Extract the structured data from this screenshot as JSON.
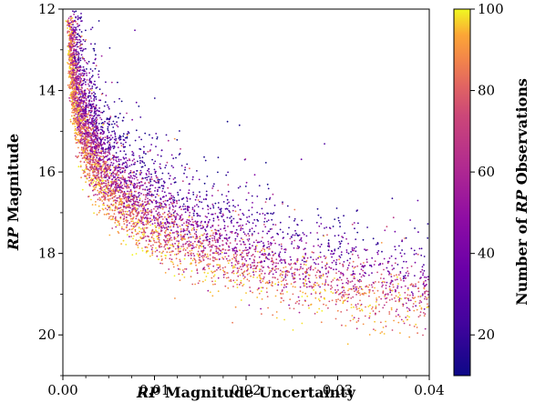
{
  "chart_data": {
    "type": "scatter",
    "title": "",
    "xlabel_parts": [
      {
        "text": "RP",
        "italic": true
      },
      {
        "text": " Magnitude Uncertainty",
        "italic": false
      }
    ],
    "ylabel_parts": [
      {
        "text": "RP",
        "italic": true
      },
      {
        "text": " Magnitude",
        "italic": false
      }
    ],
    "colorbar_label_parts": [
      {
        "text": "Number of ",
        "italic": false
      },
      {
        "text": "RP",
        "italic": true
      },
      {
        "text": " Observations",
        "italic": false
      }
    ],
    "xlim": [
      0.0,
      0.04
    ],
    "ylim": [
      21.0,
      12.0
    ],
    "y_inverted": true,
    "xticks": [
      "0.00",
      "0.01",
      "0.02",
      "0.03",
      "0.04"
    ],
    "xtick_values": [
      0.0,
      0.01,
      0.02,
      0.03,
      0.04
    ],
    "yticks": [
      "12",
      "14",
      "16",
      "18",
      "20"
    ],
    "ytick_values": [
      12,
      14,
      16,
      18,
      20
    ],
    "colorbar": {
      "colormap": "plasma",
      "range": [
        10,
        100
      ],
      "ticks": [
        "20",
        "40",
        "60",
        "80",
        "100"
      ],
      "tick_values": [
        20,
        40,
        60,
        80,
        100
      ]
    },
    "grid": false,
    "point_color_by": "number of RP observations",
    "trend_sample": [
      {
        "x": 0.0005,
        "y": 12.2
      },
      {
        "x": 0.001,
        "y": 14.0
      },
      {
        "x": 0.002,
        "y": 15.6
      },
      {
        "x": 0.004,
        "y": 16.8
      },
      {
        "x": 0.007,
        "y": 17.6
      },
      {
        "x": 0.012,
        "y": 18.3
      },
      {
        "x": 0.02,
        "y": 18.9
      },
      {
        "x": 0.03,
        "y": 19.3
      },
      {
        "x": 0.04,
        "y": 19.6
      }
    ]
  }
}
